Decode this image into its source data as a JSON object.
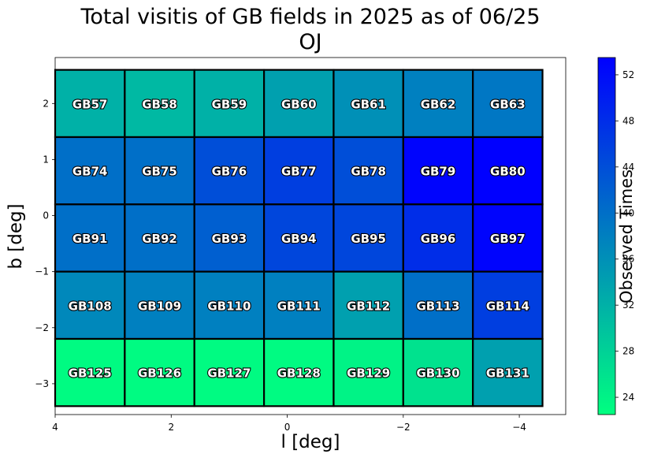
{
  "chart_data": {
    "type": "heatmap",
    "title": "Total visitis of GB fields in 2025 as of 06/25",
    "subtitle": "OJ",
    "xlabel": "l [deg]",
    "ylabel": "b [deg]",
    "colorbar_label": "Observed Times",
    "xlim": [
      4.0,
      -4.8
    ],
    "ylim": [
      -3.55,
      2.82
    ],
    "x_ticks": [
      4,
      2,
      0,
      -2,
      -4
    ],
    "x_tick_labels": [
      "4",
      "2",
      "0",
      "−2",
      "−4"
    ],
    "y_ticks": [
      2,
      1,
      0,
      -1,
      -2,
      -3
    ],
    "y_tick_labels": [
      "2",
      "1",
      "0",
      "−1",
      "−2",
      "−3"
    ],
    "colorbar_range": [
      22.5,
      53.5
    ],
    "colorbar_ticks": [
      24,
      28,
      32,
      36,
      40,
      44,
      48,
      52
    ],
    "colormap": [
      "#00ff80",
      "#0000ff"
    ],
    "cell_width_deg": 1.2,
    "cell_height_deg": 1.2,
    "columns_l": [
      3.4,
      2.2,
      1.0,
      -0.2,
      -1.4,
      -2.6,
      -3.8
    ],
    "rows_b": [
      2.0,
      0.8,
      -0.4,
      -1.6,
      -2.8
    ],
    "fields": [
      [
        "GB57",
        "GB58",
        "GB59",
        "GB60",
        "GB61",
        "GB62",
        "GB63"
      ],
      [
        "GB74",
        "GB75",
        "GB76",
        "GB77",
        "GB78",
        "GB79",
        "GB80"
      ],
      [
        "GB91",
        "GB92",
        "GB93",
        "GB94",
        "GB95",
        "GB96",
        "GB97"
      ],
      [
        "GB108",
        "GB109",
        "GB110",
        "GB111",
        "GB112",
        "GB113",
        "GB114"
      ],
      [
        "GB125",
        "GB126",
        "GB127",
        "GB128",
        "GB129",
        "GB130",
        "GB131"
      ]
    ],
    "values": [
      [
        32,
        31,
        32,
        34,
        36,
        38,
        39
      ],
      [
        40,
        40,
        44,
        46,
        44,
        53,
        54
      ],
      [
        40,
        40,
        42,
        45,
        45,
        48,
        53
      ],
      [
        37,
        38,
        38,
        38,
        34,
        40,
        46
      ],
      [
        23,
        23,
        23,
        23,
        24,
        26,
        34
      ]
    ]
  }
}
